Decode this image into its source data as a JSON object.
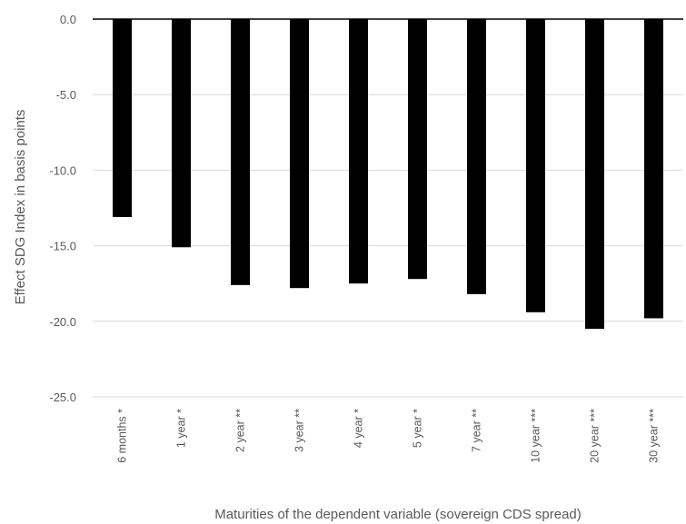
{
  "chart_data": {
    "type": "bar",
    "categories": [
      "6 months *",
      "1 year *",
      "2 year **",
      "3 year **",
      "4 year *",
      "5 year *",
      "7 year **",
      "10 year ***",
      "20 year ***",
      "30 year ***"
    ],
    "values": [
      -13.1,
      -15.1,
      -17.6,
      -17.8,
      -17.5,
      -17.2,
      -18.2,
      -19.4,
      -20.5,
      -19.8
    ],
    "title": "",
    "xlabel": "Maturities of the dependent variable (sovereign CDS spread)",
    "ylabel": "Effect SDG Index in basis points",
    "ylim": [
      -25,
      0
    ],
    "yticks": [
      "0.0",
      "-5.0",
      "-10.0",
      "-15.0",
      "-20.0",
      "-25.0"
    ],
    "grid": "horizontal",
    "bar_color": "#000000",
    "grid_color": "#d9d9d9"
  }
}
